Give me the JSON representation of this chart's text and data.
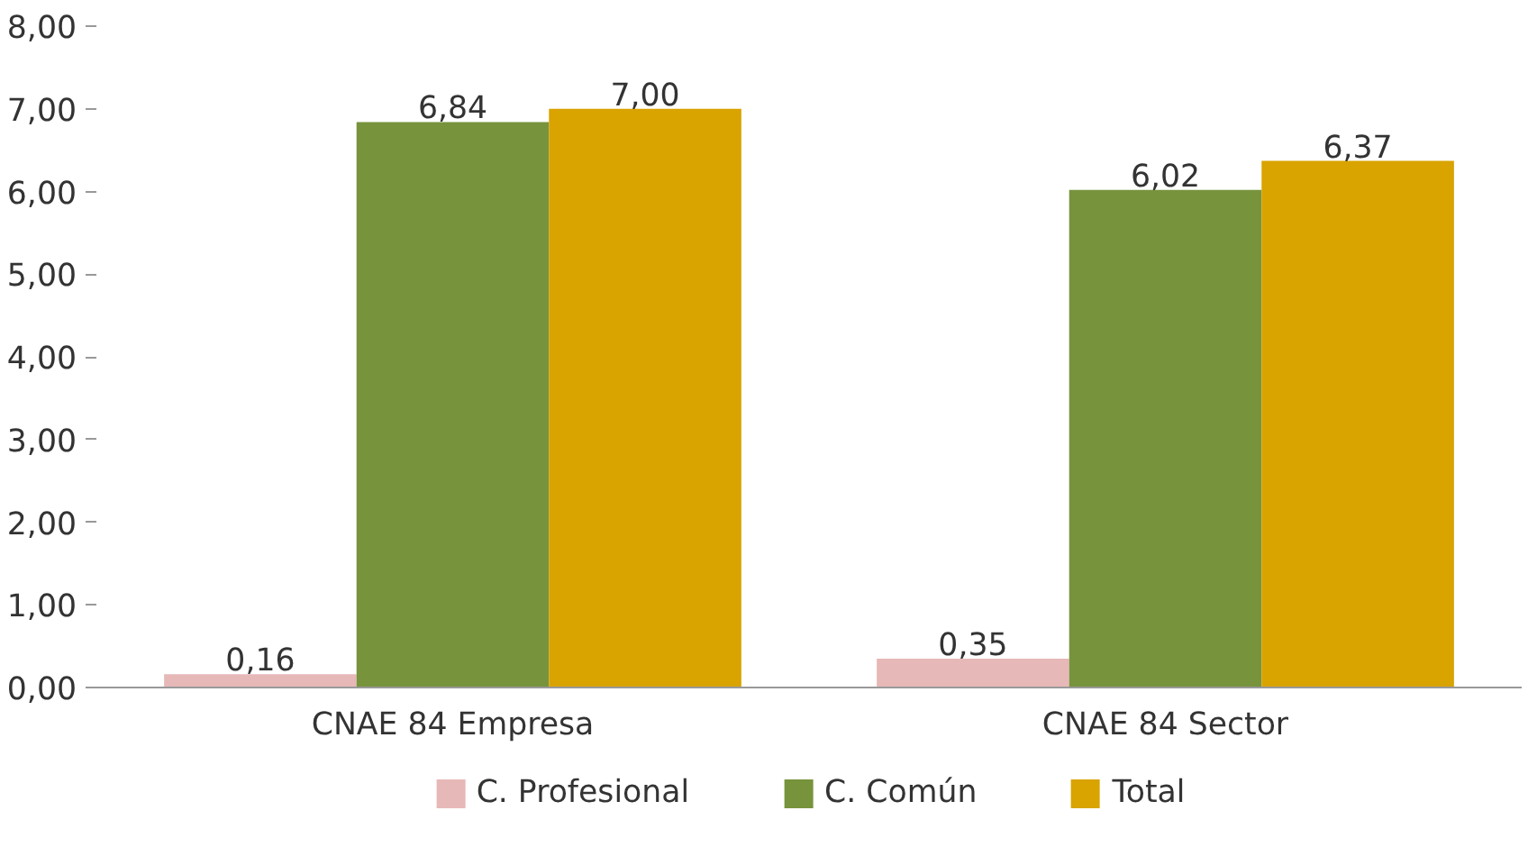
{
  "chart_data": {
    "type": "bar",
    "categories": [
      "CNAE 84 Empresa",
      "CNAE 84 Sector"
    ],
    "series": [
      {
        "name": "C. Profesional",
        "color": "#e6b8b7",
        "values": [
          0.16,
          0.35
        ],
        "value_labels": [
          "0,16",
          "0,35"
        ]
      },
      {
        "name": "C. Común",
        "color": "#77933c",
        "values": [
          6.84,
          6.02
        ],
        "value_labels": [
          "6,84",
          "6,02"
        ]
      },
      {
        "name": "Total",
        "color": "#d9a300",
        "values": [
          7.0,
          6.37
        ],
        "value_labels": [
          "7,00",
          "6,37"
        ]
      }
    ],
    "ylim": [
      0,
      8
    ],
    "yticks": [
      {
        "value": 0,
        "label": "0,00"
      },
      {
        "value": 1,
        "label": "1,00"
      },
      {
        "value": 2,
        "label": "2,00"
      },
      {
        "value": 3,
        "label": "3,00"
      },
      {
        "value": 4,
        "label": "4,00"
      },
      {
        "value": 5,
        "label": "5,00"
      },
      {
        "value": 6,
        "label": "6,00"
      },
      {
        "value": 7,
        "label": "7,00"
      },
      {
        "value": 8,
        "label": "8,00"
      }
    ],
    "grid": false,
    "legend": "bottom"
  }
}
